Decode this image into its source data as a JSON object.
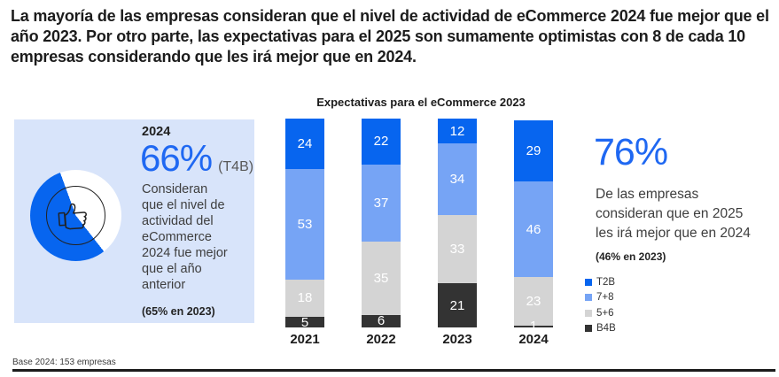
{
  "page": {
    "headline": "La mayoría de las empresas consideran que el nivel de actividad de eCommerce 2024 fue mejor que el año 2023. Por otro parte, las expectativas para el 2025 son sumamente optimistas con 8 de cada 10 empresas considerando que les irá mejor que en 2024.",
    "footer_note": "Base 2024: 153 empresas"
  },
  "highlight_box": {
    "year_label": "2024",
    "stat_value": "66%",
    "stat_suffix": "(T4B)",
    "description": "Consideran que el nivel de actividad del eCommerce 2024 fue mejor que el año anterior",
    "prior_note": "(65% en 2023)",
    "bg_color": "#d8e4fa",
    "pie": {
      "value_pct": 66,
      "fill_color": "#0765ef",
      "remainder_color": "#ffffff",
      "icon": "thumbs-up-icon"
    }
  },
  "right_stat": {
    "stat_value": "76%",
    "description": "De las empresas consideran que en 2025 les irá mejor que en 2024",
    "prior_note": "(46% en 2023)"
  },
  "chart_data": {
    "type": "bar",
    "stacked": true,
    "title": "Expectativas para el eCommerce 2023",
    "categories": [
      "2021",
      "2022",
      "2023",
      "2024"
    ],
    "series": [
      {
        "name": "T2B",
        "color": "#0765ef",
        "values": [
          24,
          22,
          12,
          29
        ]
      },
      {
        "name": "7+8",
        "color": "#76a4f5",
        "values": [
          53,
          37,
          34,
          46
        ]
      },
      {
        "name": "5+6",
        "color": "#d4d4d4",
        "values": [
          18,
          35,
          33,
          23
        ]
      },
      {
        "name": "B4B",
        "color": "#333333",
        "values": [
          5,
          6,
          21,
          1
        ]
      }
    ],
    "ylim": [
      0,
      100
    ],
    "grid": false,
    "legend_position": "right",
    "value_labels": "inside, white"
  },
  "colors": {
    "accent_blue": "#1f68f2",
    "bar_blue_strong": "#0765ef",
    "bar_blue_mid": "#76a4f5",
    "bar_gray_light": "#d4d4d4",
    "bar_dark": "#333333",
    "box_bg": "#d8e4fa"
  }
}
